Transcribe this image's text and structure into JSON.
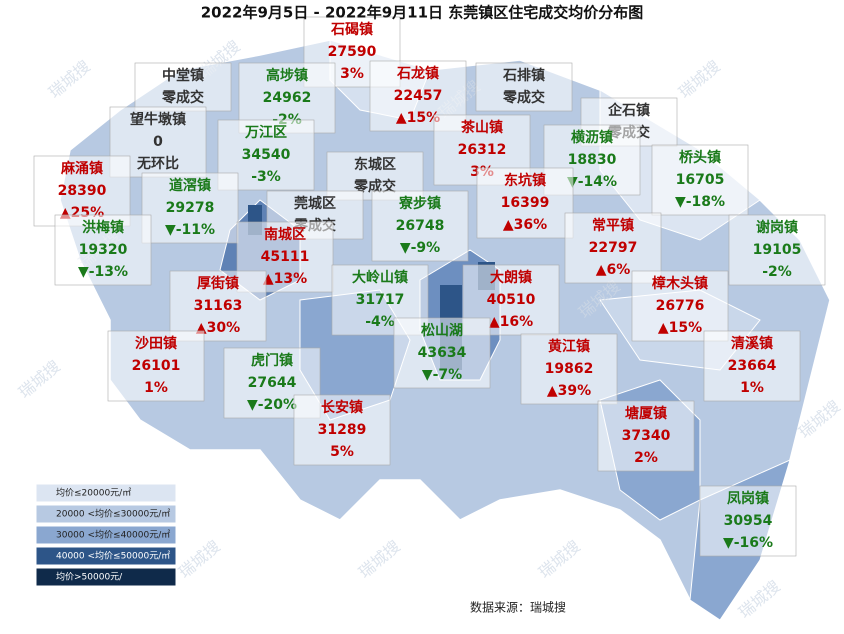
{
  "title": "2022年9月5日 - 2022年9月11日 东莞镇区住宅成交均价分布图",
  "towns": [
    {
      "name": "石碣镇",
      "price": 27590,
      "change": "3%"
    },
    {
      "name": "中堂镇",
      "status": "零成交"
    },
    {
      "name": "高埗镇",
      "price": 24962,
      "change": "-2%"
    },
    {
      "name": "石龙镇",
      "price": 22457,
      "change": "▲15%"
    },
    {
      "name": "石排镇",
      "status": "零成交"
    },
    {
      "name": "企石镇",
      "status": "零成交"
    },
    {
      "name": "望牛墩镇",
      "price": 0,
      "change": "无环比"
    },
    {
      "name": "万江区",
      "price": 34540,
      "change": "-3%"
    },
    {
      "name": "茶山镇",
      "price": 26312,
      "change": "3%"
    },
    {
      "name": "横沥镇",
      "price": 18830,
      "change": "▼-14%"
    },
    {
      "name": "麻涌镇",
      "price": 28390,
      "change": "▲25%"
    },
    {
      "name": "东城区",
      "status": "零成交"
    },
    {
      "name": "东坑镇",
      "price": 16399,
      "change": "▲36%"
    },
    {
      "name": "桥头镇",
      "price": 16705,
      "change": "▼-18%"
    },
    {
      "name": "道滘镇",
      "price": 29278,
      "change": "▼-11%"
    },
    {
      "name": "莞城区",
      "status": "零成交"
    },
    {
      "name": "寮步镇",
      "price": 26748,
      "change": "▼-9%"
    },
    {
      "name": "洪梅镇",
      "price": 19320,
      "change": "▼-13%"
    },
    {
      "name": "南城区",
      "price": 45111,
      "change": "▲13%"
    },
    {
      "name": "常平镇",
      "price": 22797,
      "change": "▲6%"
    },
    {
      "name": "谢岗镇",
      "price": 19105,
      "change": "-2%"
    },
    {
      "name": "厚街镇",
      "price": 31163,
      "change": "▲30%"
    },
    {
      "name": "大岭山镇",
      "price": 31717,
      "change": "-4%"
    },
    {
      "name": "大朗镇",
      "price": 40510,
      "change": "▲16%"
    },
    {
      "name": "樟木头镇",
      "price": 26776,
      "change": "▲15%"
    },
    {
      "name": "松山湖",
      "price": 43634,
      "change": "▼-7%"
    },
    {
      "name": "沙田镇",
      "price": 26101,
      "change": "1%"
    },
    {
      "name": "黄江镇",
      "price": 19862,
      "change": "▲39%"
    },
    {
      "name": "清溪镇",
      "price": 23664,
      "change": "1%"
    },
    {
      "name": "虎门镇",
      "price": 27644,
      "change": "▼-20%"
    },
    {
      "name": "长安镇",
      "price": 31289,
      "change": "5%"
    },
    {
      "name": "塘厦镇",
      "price": 37340,
      "change": "2%"
    },
    {
      "name": "凤岗镇",
      "price": 30954,
      "change": "▼-16%"
    }
  ],
  "legend": [
    "均价≤20000元/㎡",
    "20000 <均价≤30000元/㎡",
    "30000 <均价≤40000元/㎡",
    "40000 <均价≤50000元/㎡",
    "均价>50000元/"
  ],
  "source": "数据来源：瑞城搜",
  "watermark": "瑞城搜"
}
